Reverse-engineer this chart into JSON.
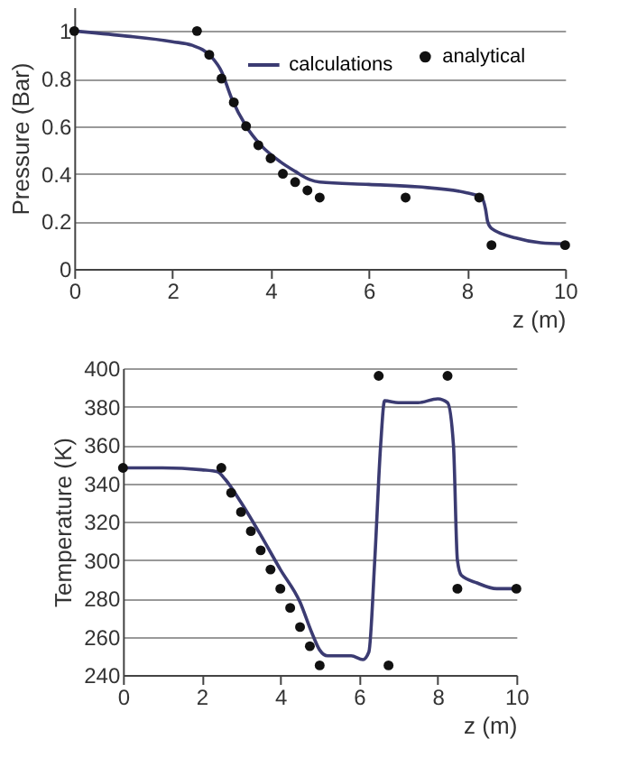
{
  "chart_data": [
    {
      "type": "line",
      "xlabel": "z (m)",
      "ylabel": "Pressure (Bar)",
      "xlim": [
        0,
        10
      ],
      "xticks": [
        0,
        2,
        4,
        6,
        8,
        10
      ],
      "ylim": [
        0,
        1.1
      ],
      "yticks": [
        0,
        0.2,
        0.4,
        0.6,
        0.8,
        1
      ],
      "grid": "y",
      "legend": "top right",
      "series": [
        {
          "name": "calculations",
          "type": "line",
          "color": "#3b3b72",
          "x": [
            0,
            1,
            2,
            2.4,
            2.8,
            3,
            3.2,
            3.5,
            3.8,
            4.2,
            4.5,
            4.8,
            5,
            6,
            7,
            8,
            8.3,
            8.38,
            8.42,
            8.5,
            9,
            9.5,
            10
          ],
          "values": [
            1,
            0.98,
            0.955,
            0.94,
            0.89,
            0.83,
            0.72,
            0.6,
            0.52,
            0.45,
            0.41,
            0.375,
            0.365,
            0.355,
            0.345,
            0.32,
            0.3,
            0.25,
            0.2,
            0.17,
            0.13,
            0.11,
            0.105
          ]
        },
        {
          "name": "analytical",
          "type": "scatter",
          "marker": "circle",
          "color": "#111111",
          "x": [
            0,
            2.5,
            2.75,
            3,
            3.25,
            3.5,
            3.75,
            4,
            4.25,
            4.5,
            4.75,
            5,
            6.75,
            8.25,
            8.5,
            10
          ],
          "values": [
            1,
            1,
            0.9,
            0.8,
            0.7,
            0.6,
            0.52,
            0.465,
            0.4,
            0.365,
            0.33,
            0.3,
            0.3,
            0.3,
            0.1,
            0.1
          ]
        }
      ]
    },
    {
      "type": "line",
      "xlabel": "z (m)",
      "ylabel": "Temperature (K)",
      "xlim": [
        0,
        10
      ],
      "xticks": [
        0,
        2,
        4,
        6,
        8,
        10
      ],
      "ylim": [
        240,
        400
      ],
      "yticks": [
        240,
        260,
        280,
        300,
        320,
        340,
        360,
        380,
        400
      ],
      "grid": "y",
      "series": [
        {
          "type": "line",
          "color": "#3b3b72",
          "x": [
            0,
            1,
            2,
            2.4,
            2.6,
            3,
            3.5,
            4,
            4.5,
            4.8,
            5,
            5.2,
            5.8,
            6.1,
            6.25,
            6.4,
            6.55,
            6.65,
            7,
            7.5,
            8,
            8.25,
            8.4,
            8.5,
            8.6,
            9,
            9.5,
            10
          ],
          "values": [
            348,
            348,
            347,
            346,
            342,
            330,
            313,
            295,
            278,
            262,
            253,
            250,
            250,
            248,
            252,
            300,
            360,
            383,
            382,
            382,
            384,
            382,
            360,
            300,
            292,
            288,
            285,
            285
          ]
        },
        {
          "type": "scatter",
          "marker": "circle",
          "color": "#111111",
          "x": [
            0,
            2.5,
            2.75,
            3,
            3.25,
            3.5,
            3.75,
            4,
            4.25,
            4.5,
            4.75,
            5,
            6.5,
            6.75,
            8.25,
            8.5,
            10
          ],
          "values": [
            348,
            348,
            335,
            325,
            315,
            305,
            295,
            285,
            275,
            265,
            255,
            245,
            396,
            245,
            396,
            285,
            285
          ]
        }
      ]
    }
  ]
}
